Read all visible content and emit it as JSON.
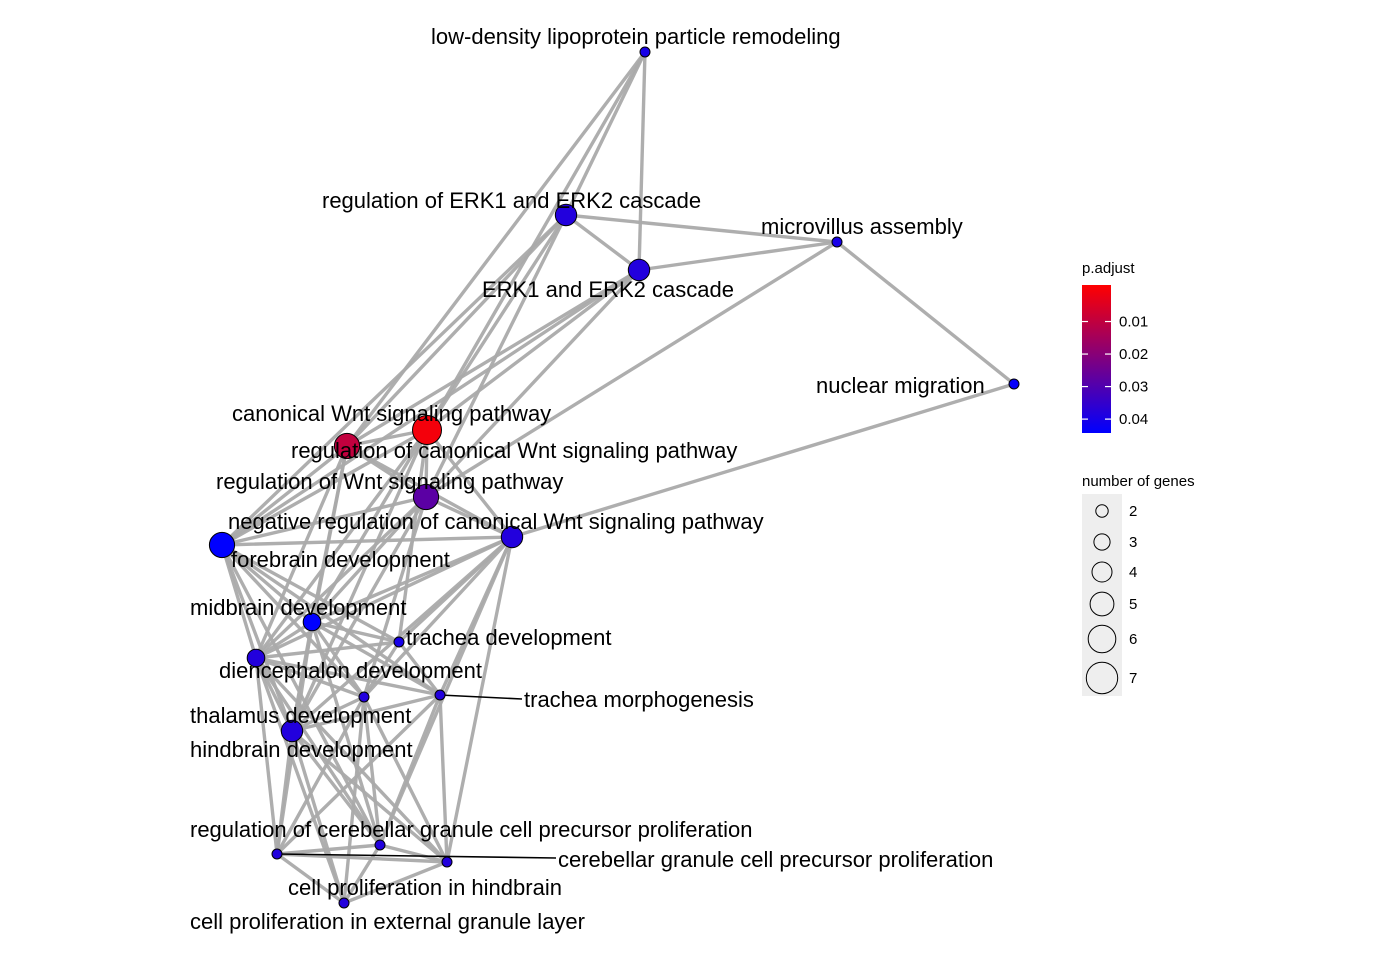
{
  "chart_data": {
    "type": "network",
    "colors": {
      "edge": "#aaaaaa",
      "low_p": "#ff0000",
      "high_p": "#0000ff",
      "node_stroke": "#000000",
      "size_legend_bg": "#eeeeee"
    },
    "nodes": [
      {
        "id": "low-density lipoprotein particle remodeling",
        "label": "low-density lipoprotein particle remodeling",
        "size": 2,
        "p_adjust": 0.042
      },
      {
        "id": "regulation of ERK1 and ERK2 cascade",
        "label": "regulation of ERK1 and ERK2 cascade",
        "size": 5,
        "p_adjust": 0.04
      },
      {
        "id": "microvillus assembly",
        "label": "microvillus assembly",
        "size": 2,
        "p_adjust": 0.042
      },
      {
        "id": "ERK1 and ERK2 cascade",
        "label": "ERK1 and ERK2 cascade",
        "size": 5,
        "p_adjust": 0.04
      },
      {
        "id": "nuclear migration",
        "label": "nuclear migration",
        "size": 2,
        "p_adjust": 0.045
      },
      {
        "id": "canonical Wnt signaling pathway",
        "label": "canonical Wnt signaling pathway",
        "size": 7,
        "p_adjust": 0.003
      },
      {
        "id": "regulation of canonical Wnt signaling pathway",
        "label": "regulation of canonical Wnt signaling pathway",
        "size": 6,
        "p_adjust": 0.012
      },
      {
        "id": "regulation of Wnt signaling pathway",
        "label": "regulation of Wnt signaling pathway",
        "size": 6,
        "p_adjust": 0.03
      },
      {
        "id": "negative regulation of canonical Wnt signaling pathway",
        "label": "negative regulation of canonical Wnt signaling pathway",
        "size": 5,
        "p_adjust": 0.04
      },
      {
        "id": "forebrain development",
        "label": "forebrain development",
        "size": 6,
        "p_adjust": 0.046
      },
      {
        "id": "midbrain development",
        "label": "midbrain development",
        "size": 4,
        "p_adjust": 0.046
      },
      {
        "id": "trachea development",
        "label": "trachea development",
        "size": 2,
        "p_adjust": 0.042
      },
      {
        "id": "diencephalon development",
        "label": "diencephalon development",
        "size": 4,
        "p_adjust": 0.04
      },
      {
        "id": "thalamus development",
        "label": "thalamus development",
        "size": 2,
        "p_adjust": 0.04
      },
      {
        "id": "trachea morphogenesis",
        "label": "trachea morphogenesis",
        "size": 2,
        "p_adjust": 0.04
      },
      {
        "id": "hindbrain development",
        "label": "hindbrain development",
        "size": 5,
        "p_adjust": 0.04
      },
      {
        "id": "regulation of cerebellar granule cell precursor proliferation",
        "label": "regulation of cerebellar granule cell precursor proliferation",
        "size": 2,
        "p_adjust": 0.04
      },
      {
        "id": "cerebellar granule cell precursor proliferation",
        "label": "cerebellar granule cell precursor proliferation",
        "size": 2,
        "p_adjust": 0.04
      },
      {
        "id": "cell proliferation in hindbrain",
        "label": "cell proliferation in hindbrain",
        "size": 2,
        "p_adjust": 0.04
      },
      {
        "id": "cell proliferation in external granule layer",
        "label": "cell proliferation in external granule layer",
        "size": 2,
        "p_adjust": 0.04
      }
    ],
    "edges": [
      [
        "low-density lipoprotein particle remodeling",
        "regulation of ERK1 and ERK2 cascade"
      ],
      [
        "low-density lipoprotein particle remodeling",
        "ERK1 and ERK2 cascade"
      ],
      [
        "low-density lipoprotein particle remodeling",
        "canonical Wnt signaling pathway"
      ],
      [
        "low-density lipoprotein particle remodeling",
        "regulation of canonical Wnt signaling pathway"
      ],
      [
        "regulation of ERK1 and ERK2 cascade",
        "ERK1 and ERK2 cascade"
      ],
      [
        "regulation of ERK1 and ERK2 cascade",
        "microvillus assembly"
      ],
      [
        "regulation of ERK1 and ERK2 cascade",
        "canonical Wnt signaling pathway"
      ],
      [
        "regulation of ERK1 and ERK2 cascade",
        "regulation of canonical Wnt signaling pathway"
      ],
      [
        "regulation of ERK1 and ERK2 cascade",
        "regulation of Wnt signaling pathway"
      ],
      [
        "regulation of ERK1 and ERK2 cascade",
        "forebrain development"
      ],
      [
        "ERK1 and ERK2 cascade",
        "microvillus assembly"
      ],
      [
        "ERK1 and ERK2 cascade",
        "canonical Wnt signaling pathway"
      ],
      [
        "ERK1 and ERK2 cascade",
        "regulation of canonical Wnt signaling pathway"
      ],
      [
        "ERK1 and ERK2 cascade",
        "regulation of Wnt signaling pathway"
      ],
      [
        "ERK1 and ERK2 cascade",
        "forebrain development"
      ],
      [
        "microvillus assembly",
        "nuclear migration"
      ],
      [
        "microvillus assembly",
        "regulation of Wnt signaling pathway"
      ],
      [
        "nuclear migration",
        "negative regulation of canonical Wnt signaling pathway"
      ],
      [
        "canonical Wnt signaling pathway",
        "regulation of canonical Wnt signaling pathway"
      ],
      [
        "canonical Wnt signaling pathway",
        "regulation of Wnt signaling pathway"
      ],
      [
        "canonical Wnt signaling pathway",
        "negative regulation of canonical Wnt signaling pathway"
      ],
      [
        "canonical Wnt signaling pathway",
        "forebrain development"
      ],
      [
        "canonical Wnt signaling pathway",
        "midbrain development"
      ],
      [
        "canonical Wnt signaling pathway",
        "diencephalon development"
      ],
      [
        "canonical Wnt signaling pathway",
        "hindbrain development"
      ],
      [
        "canonical Wnt signaling pathway",
        "trachea development"
      ],
      [
        "regulation of canonical Wnt signaling pathway",
        "regulation of Wnt signaling pathway"
      ],
      [
        "regulation of canonical Wnt signaling pathway",
        "negative regulation of canonical Wnt signaling pathway"
      ],
      [
        "regulation of canonical Wnt signaling pathway",
        "forebrain development"
      ],
      [
        "regulation of canonical Wnt signaling pathway",
        "midbrain development"
      ],
      [
        "regulation of canonical Wnt signaling pathway",
        "diencephalon development"
      ],
      [
        "regulation of canonical Wnt signaling pathway",
        "hindbrain development"
      ],
      [
        "regulation of Wnt signaling pathway",
        "negative regulation of canonical Wnt signaling pathway"
      ],
      [
        "regulation of Wnt signaling pathway",
        "forebrain development"
      ],
      [
        "regulation of Wnt signaling pathway",
        "midbrain development"
      ],
      [
        "regulation of Wnt signaling pathway",
        "diencephalon development"
      ],
      [
        "regulation of Wnt signaling pathway",
        "hindbrain development"
      ],
      [
        "regulation of Wnt signaling pathway",
        "thalamus development"
      ],
      [
        "negative regulation of canonical Wnt signaling pathway",
        "forebrain development"
      ],
      [
        "negative regulation of canonical Wnt signaling pathway",
        "midbrain development"
      ],
      [
        "negative regulation of canonical Wnt signaling pathway",
        "trachea development"
      ],
      [
        "negative regulation of canonical Wnt signaling pathway",
        "diencephalon development"
      ],
      [
        "negative regulation of canonical Wnt signaling pathway",
        "thalamus development"
      ],
      [
        "negative regulation of canonical Wnt signaling pathway",
        "trachea morphogenesis"
      ],
      [
        "negative regulation of canonical Wnt signaling pathway",
        "hindbrain development"
      ],
      [
        "negative regulation of canonical Wnt signaling pathway",
        "cerebellar granule cell precursor proliferation"
      ],
      [
        "negative regulation of canonical Wnt signaling pathway",
        "regulation of cerebellar granule cell precursor proliferation"
      ],
      [
        "forebrain development",
        "midbrain development"
      ],
      [
        "forebrain development",
        "trachea development"
      ],
      [
        "forebrain development",
        "diencephalon development"
      ],
      [
        "forebrain development",
        "thalamus development"
      ],
      [
        "forebrain development",
        "trachea morphogenesis"
      ],
      [
        "forebrain development",
        "hindbrain development"
      ],
      [
        "forebrain development",
        "regulation of cerebellar granule cell precursor proliferation"
      ],
      [
        "midbrain development",
        "trachea development"
      ],
      [
        "midbrain development",
        "diencephalon development"
      ],
      [
        "midbrain development",
        "thalamus development"
      ],
      [
        "midbrain development",
        "trachea morphogenesis"
      ],
      [
        "midbrain development",
        "hindbrain development"
      ],
      [
        "midbrain development",
        "regulation of cerebellar granule cell precursor proliferation"
      ],
      [
        "midbrain development",
        "cell proliferation in hindbrain"
      ],
      [
        "trachea development",
        "diencephalon development"
      ],
      [
        "trachea development",
        "trachea morphogenesis"
      ],
      [
        "trachea development",
        "thalamus development"
      ],
      [
        "diencephalon development",
        "thalamus development"
      ],
      [
        "diencephalon development",
        "trachea morphogenesis"
      ],
      [
        "diencephalon development",
        "hindbrain development"
      ],
      [
        "diencephalon development",
        "regulation of cerebellar granule cell precursor proliferation"
      ],
      [
        "diencephalon development",
        "cerebellar granule cell precursor proliferation"
      ],
      [
        "diencephalon development",
        "cell proliferation in hindbrain"
      ],
      [
        "diencephalon development",
        "cell proliferation in external granule layer"
      ],
      [
        "thalamus development",
        "hindbrain development"
      ],
      [
        "thalamus development",
        "regulation of cerebellar granule cell precursor proliferation"
      ],
      [
        "thalamus development",
        "cerebellar granule cell precursor proliferation"
      ],
      [
        "thalamus development",
        "cell proliferation in hindbrain"
      ],
      [
        "thalamus development",
        "cell proliferation in external granule layer"
      ],
      [
        "trachea morphogenesis",
        "hindbrain development"
      ],
      [
        "trachea morphogenesis",
        "regulation of cerebellar granule cell precursor proliferation"
      ],
      [
        "trachea morphogenesis",
        "cerebellar granule cell precursor proliferation"
      ],
      [
        "trachea morphogenesis",
        "cell proliferation in hindbrain"
      ],
      [
        "hindbrain development",
        "regulation of cerebellar granule cell precursor proliferation"
      ],
      [
        "hindbrain development",
        "cerebellar granule cell precursor proliferation"
      ],
      [
        "hindbrain development",
        "cell proliferation in hindbrain"
      ],
      [
        "hindbrain development",
        "cell proliferation in external granule layer"
      ],
      [
        "regulation of cerebellar granule cell precursor proliferation",
        "cerebellar granule cell precursor proliferation"
      ],
      [
        "regulation of cerebellar granule cell precursor proliferation",
        "cell proliferation in hindbrain"
      ],
      [
        "regulation of cerebellar granule cell precursor proliferation",
        "cell proliferation in external granule layer"
      ],
      [
        "cerebellar granule cell precursor proliferation",
        "cell proliferation in hindbrain"
      ],
      [
        "cerebellar granule cell precursor proliferation",
        "cell proliferation in external granule layer"
      ],
      [
        "cell proliferation in hindbrain",
        "cell proliferation in external granule layer"
      ]
    ],
    "legend_color": {
      "title": "p.adjust",
      "min": 0.001,
      "max": 0.046,
      "ticks": [
        0.01,
        0.02,
        0.03,
        0.04
      ],
      "tick_labels": [
        "0.01",
        "0.02",
        "0.03",
        "0.04"
      ],
      "low_color": "#ff0000",
      "high_color": "#0000ff"
    },
    "legend_size": {
      "title": "number of genes",
      "values": [
        2,
        3,
        4,
        5,
        6,
        7
      ],
      "labels": [
        "2",
        "3",
        "4",
        "5",
        "6",
        "7"
      ]
    }
  }
}
